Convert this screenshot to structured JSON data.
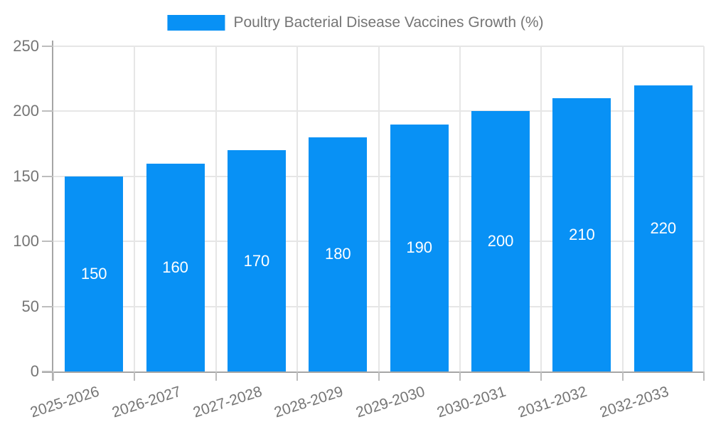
{
  "legend": {
    "label": "Poultry Bacterial Disease Vaccines Growth (%)"
  },
  "chart_data": {
    "type": "bar",
    "title": "Poultry Bacterial Disease Vaccines Growth (%)",
    "categories": [
      "2025-2026",
      "2026-2027",
      "2027-2028",
      "2028-2029",
      "2029-2030",
      "2030-2031",
      "2031-2032",
      "2032-2033"
    ],
    "series": [
      {
        "name": "Poultry Bacterial Disease Vaccines Growth (%)",
        "values": [
          150,
          160,
          170,
          180,
          190,
          200,
          210,
          220
        ]
      }
    ],
    "bar_labels": [
      "150",
      "160",
      "170",
      "180",
      "190",
      "200",
      "210",
      "220"
    ],
    "xlabel": "",
    "ylabel": "",
    "ylim": [
      0,
      250
    ],
    "yticks": [
      0,
      50,
      100,
      150,
      200,
      250
    ],
    "grid": "both",
    "legend_position": "top-center",
    "colors": {
      "bar": "#0891F5",
      "bar_label": "#ffffff",
      "axis": "#a6a6a6",
      "gridline": "#e6e6e6",
      "tick": "#bdbdbd",
      "text": "#757575",
      "background": "#ffffff"
    }
  }
}
